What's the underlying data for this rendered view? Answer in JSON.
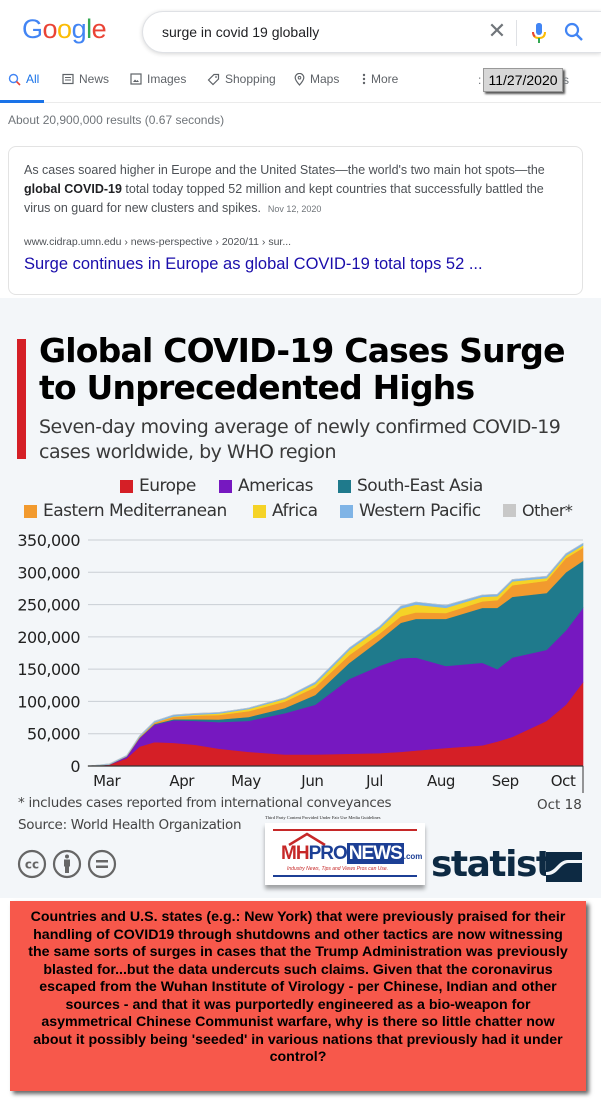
{
  "google": {
    "logo_letters": [
      "G",
      "o",
      "o",
      "g",
      "l",
      "e"
    ],
    "logo_colors": [
      "#4285f4",
      "#ea4335",
      "#fbbc05",
      "#4285f4",
      "#34a853",
      "#ea4335"
    ],
    "search_query": "surge in covid 19 globally",
    "icons": {
      "clear": "close-icon",
      "voice": "mic-icon",
      "search": "search-icon"
    },
    "tabs": [
      {
        "label": "All",
        "icon": "search-icon",
        "active": true
      },
      {
        "label": "News",
        "icon": "news-icon"
      },
      {
        "label": "Images",
        "icon": "image-icon"
      },
      {
        "label": "Shopping",
        "icon": "tag-icon"
      },
      {
        "label": "Maps",
        "icon": "map-pin-icon"
      },
      {
        "label": "More",
        "icon": "more-vert-icon"
      }
    ],
    "tools_fragment_left": ":",
    "tools_fragment_right": "s",
    "date_stamp": "11/27/2020",
    "results_count": "About 20,900,000 results (0.67 seconds)",
    "result": {
      "snippet_before": "As cases soared higher in Europe and the United States—the world's two main hot spots—the ",
      "snippet_bold": "global COVID-19",
      "snippet_after": " total today topped 52 million and kept countries that successfully battled the virus on guard for new clusters and spikes.",
      "date": "Nov 12, 2020",
      "cite": "www.cidrap.umn.edu › news-perspective › 2020/11 › sur...",
      "title": "Surge continues in Europe as global COVID-19 total tops 52 ..."
    },
    "accent": "#1a73e8",
    "link_color": "#1a0dab"
  },
  "chart_data": {
    "type": "area",
    "stacked": true,
    "title": "Global COVID-19 Cases Surge to Unprecedented Highs",
    "subtitle": "Seven-day moving average of newly confirmed COVID-19 cases worldwide, by WHO region",
    "xlabel": "",
    "ylabel": "",
    "x_unit": "days since Mar 1, 2020",
    "x": [
      0,
      10,
      18,
      24,
      31,
      40,
      50,
      61,
      75,
      92,
      106,
      122,
      136,
      146,
      153,
      167,
      184,
      191,
      198,
      214,
      223,
      231
    ],
    "x_tick_labels": [
      "Mar",
      "Apr",
      "May",
      "Jun",
      "Jul",
      "Aug",
      "Sep",
      "Oct"
    ],
    "x_tick_days": [
      5,
      40,
      70,
      101,
      130,
      161,
      191,
      218
    ],
    "end_label": "Oct 18",
    "ylim": [
      0,
      350000
    ],
    "y_ticks": [
      0,
      50000,
      100000,
      150000,
      200000,
      250000,
      300000,
      350000
    ],
    "y_tick_labels": [
      "0",
      "50,000",
      "100,000",
      "150,000",
      "200,000",
      "250,000",
      "300,000",
      "350,000"
    ],
    "grid": true,
    "legend_position": "top",
    "series": [
      {
        "name": "Europe",
        "color": "#d51f26",
        "values": [
          0,
          2000,
          12000,
          30000,
          37000,
          36000,
          33000,
          27000,
          22000,
          18000,
          18000,
          19000,
          20000,
          22000,
          24000,
          28000,
          32000,
          38000,
          45000,
          70000,
          95000,
          130000
        ]
      },
      {
        "name": "Americas",
        "color": "#7618c0",
        "values": [
          0,
          200,
          2500,
          13000,
          27000,
          35000,
          37000,
          41000,
          48000,
          64000,
          77000,
          116000,
          135000,
          145000,
          144000,
          127000,
          128000,
          112000,
          123000,
          110000,
          115000,
          115000
        ]
      },
      {
        "name": "South-East Asia",
        "color": "#1f7a8c",
        "values": [
          0,
          50,
          200,
          500,
          1000,
          1500,
          2500,
          4000,
          6000,
          8000,
          15000,
          25000,
          40000,
          55000,
          60000,
          73000,
          85000,
          95000,
          94000,
          88000,
          90000,
          73000
        ]
      },
      {
        "name": "Eastern Mediterranean",
        "color": "#f29a2e",
        "values": [
          0,
          200,
          600,
          1200,
          2000,
          3500,
          5500,
          7000,
          9000,
          10000,
          12000,
          12000,
          10000,
          10000,
          10000,
          9000,
          10000,
          12000,
          18000,
          19000,
          22000,
          20000
        ]
      },
      {
        "name": "Africa",
        "color": "#f5d327",
        "values": [
          0,
          20,
          80,
          200,
          400,
          800,
          1500,
          2500,
          3500,
          4000,
          5000,
          8000,
          8000,
          12000,
          12000,
          8000,
          7000,
          6000,
          6000,
          4000,
          4000,
          4000
        ]
      },
      {
        "name": "Western Pacific",
        "color": "#7fb4e6",
        "values": [
          0,
          1000,
          1000,
          1500,
          2000,
          2500,
          2000,
          1500,
          1500,
          2000,
          3000,
          3000,
          3000,
          4000,
          4000,
          4000,
          3000,
          3000,
          3000,
          3000,
          3000,
          3000
        ]
      },
      {
        "name": "Other*",
        "color": "#c8c8c8",
        "values": [
          0,
          50,
          50,
          50,
          50,
          50,
          50,
          50,
          50,
          50,
          50,
          50,
          50,
          50,
          50,
          50,
          50,
          50,
          50,
          50,
          50,
          50
        ]
      }
    ],
    "footnote": "* includes cases reported from international conveyances",
    "source": "Source: World Health Organization"
  },
  "branding": {
    "fair_use": "Third Party Content Provided Under Fair Use Media Guidelines",
    "mh_logo_mh": "MH",
    "mh_logo_pro": "PRO",
    "mh_logo_news": "NEWS",
    "mh_logo_com": ".com",
    "mh_logo_tagline": "Industry News, Tips and Views Pros can Use.",
    "statista": "statista",
    "license_icons": [
      "cc-icon",
      "attribution-icon",
      "no-derivatives-icon"
    ]
  },
  "commentary": {
    "text": "Countries and U.S. states (e.g.: New York) that were previously praised for their handling of COVID19 through shutdowns and other tactics are now witnessing the same sorts of surges in cases that the Trump Administration was previously blasted for...but the data undercuts such claims.  Given that the coronavirus escaped from the Wuhan Institute of Virology - per Chinese, Indian and other sources - and that it was purportedly engineered as a bio-weapon for asymmetrical Chinese Communist warfare, why is there so little chatter now about it possibly being 'seeded' in various nations that previously had it under control?",
    "background": "#f7584b"
  }
}
